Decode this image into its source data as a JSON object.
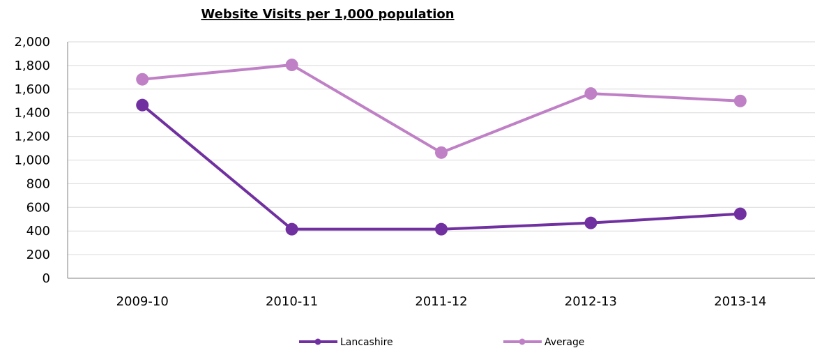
{
  "chart_data": {
    "type": "line",
    "title": "Website Visits per 1,000 population",
    "categories": [
      "2009-10",
      "2010-11",
      "2011-12",
      "2012-13",
      "2013-14"
    ],
    "ylim": [
      0,
      2000
    ],
    "yticks": [
      0,
      200,
      400,
      600,
      800,
      1000,
      1200,
      1400,
      1600,
      1800,
      2000
    ],
    "ytick_labels": [
      "0",
      "200",
      "400",
      "600",
      "800",
      "1,000",
      "1,200",
      "1,400",
      "1,600",
      "1,800",
      "2,000"
    ],
    "grid": true,
    "legend_position": "bottom",
    "series": [
      {
        "name": "Lancashire",
        "color": "#7030a0",
        "values": [
          1465,
          415,
          415,
          468,
          545
        ]
      },
      {
        "name": "Average",
        "color": "#bf80c6",
        "values": [
          1683,
          1805,
          1063,
          1563,
          1500
        ]
      }
    ]
  }
}
